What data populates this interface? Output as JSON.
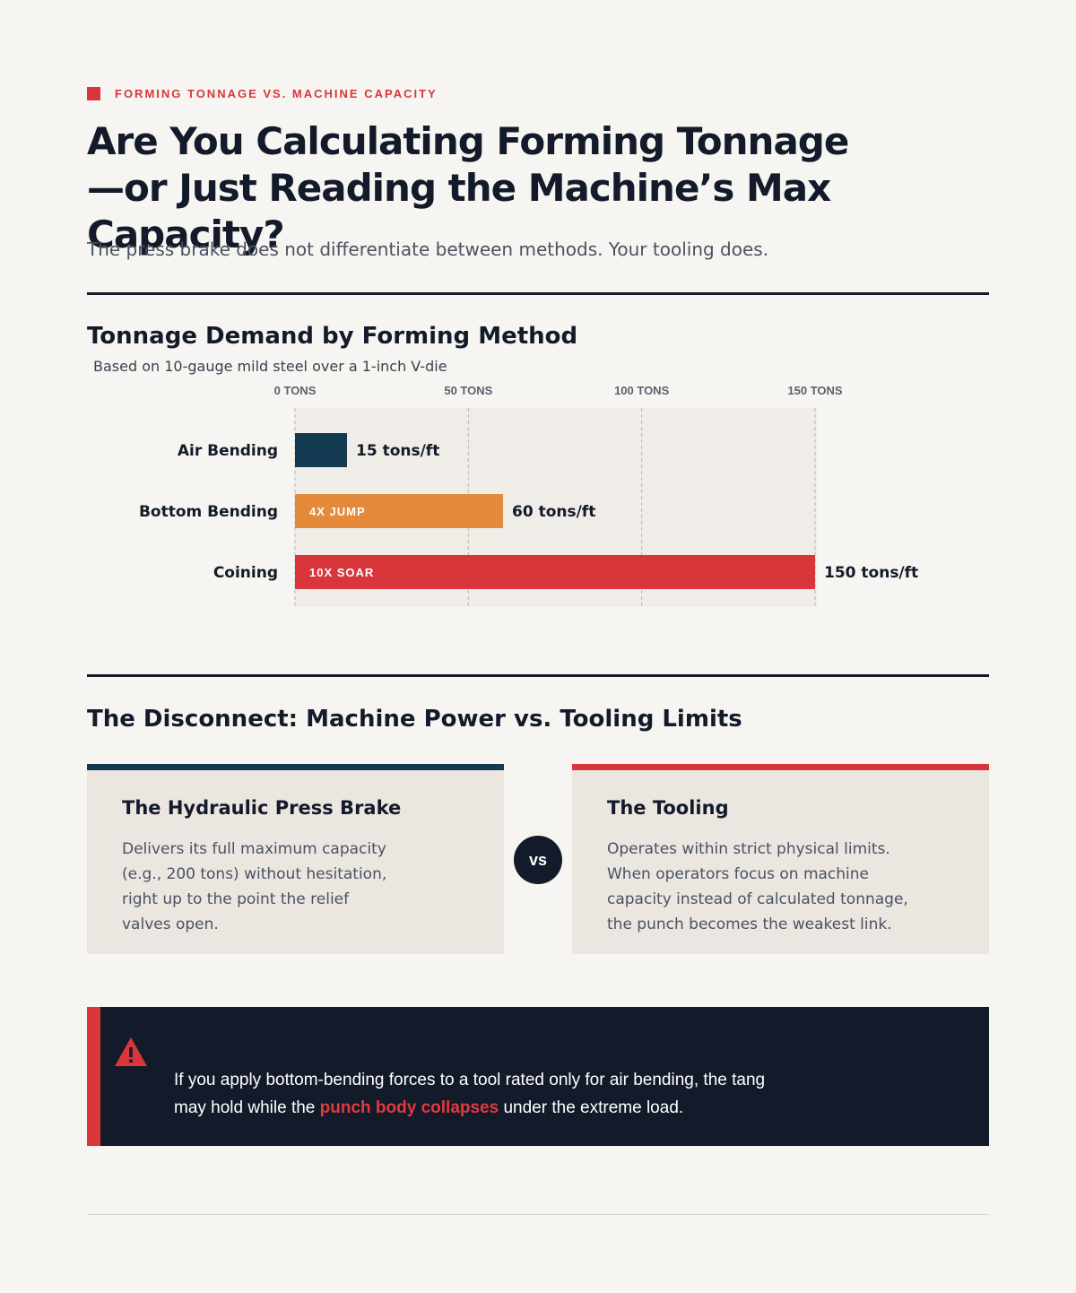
{
  "eyebrow": "FORMING TONNAGE VS. MACHINE CAPACITY",
  "headline_line1": "Are You Calculating Forming Tonnage",
  "headline_line2": "—or Just Reading the Machine’s Max Capacity?",
  "lede": "The press brake does not differentiate between methods. Your tooling does.",
  "chart_data": {
    "type": "bar",
    "orientation": "horizontal",
    "title": "Tonnage Demand by Forming Method",
    "subtitle": "Based on 10-gauge mild steel over a 1-inch V-die",
    "categories": [
      "Air Bending",
      "Bottom Bending",
      "Coining"
    ],
    "values": [
      15,
      60,
      150
    ],
    "value_labels": [
      "15 tons/ft",
      "60 tons/ft",
      "150 tons/ft"
    ],
    "bar_tags": [
      "",
      "4X JUMP",
      "10X SOAR"
    ],
    "colors": [
      "#143a52",
      "#e48a3a",
      "#d9363b"
    ],
    "xticks": [
      0,
      50,
      100,
      150
    ],
    "xtick_labels": [
      "0 TONS",
      "50 TONS",
      "100 TONS",
      "150 TONS"
    ],
    "xlim": [
      0,
      150
    ],
    "grid": true,
    "legend": "none"
  },
  "section2_title": "The Disconnect: Machine Power vs. Tooling Limits",
  "cards": [
    {
      "title": "The Hydraulic Press Brake",
      "body": "Delivers its full maximum capacity (e.g., 200 tons) without hesitation, right up to the point the relief valves open."
    },
    {
      "title": "The Tooling",
      "body": "Operates within strict physical limits. When operators focus on machine capacity instead of calculated tonnage, the punch becomes the weakest link."
    }
  ],
  "vs_label": "vs",
  "alert": {
    "icon": "warning-triangle-icon",
    "text_before": "If you apply bottom-bending forces to a tool rated only for air bending, the tang may hold while the ",
    "text_highlight": "punch body collapses",
    "text_after": " under the extreme load."
  }
}
